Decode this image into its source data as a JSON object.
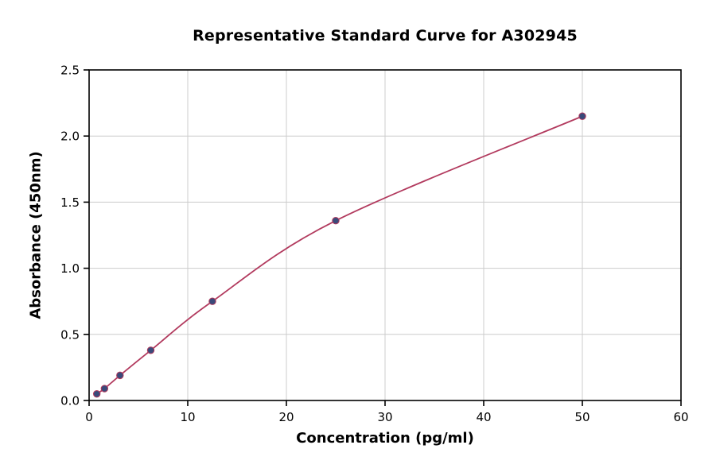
{
  "figure": {
    "background": "#ffffff"
  },
  "chart_data": {
    "type": "scatter",
    "title": "Representative Standard Curve for A302945",
    "xlabel": "Concentration (pg/ml)",
    "ylabel": "Absorbance (450nm)",
    "xlim": [
      0,
      60
    ],
    "ylim": [
      0,
      2.5
    ],
    "x_ticks": [
      0,
      10,
      20,
      30,
      40,
      50,
      60
    ],
    "x_tick_labels": [
      "0",
      "10",
      "20",
      "30",
      "40",
      "50",
      "60"
    ],
    "y_ticks": [
      0.0,
      0.5,
      1.0,
      1.5,
      2.0,
      2.5
    ],
    "y_tick_labels": [
      "0.0",
      "0.5",
      "1.0",
      "1.5",
      "2.0",
      "2.5"
    ],
    "grid": true,
    "legend": "none",
    "points": [
      {
        "x": 0.78,
        "y": 0.05
      },
      {
        "x": 1.56,
        "y": 0.09
      },
      {
        "x": 3.13,
        "y": 0.19
      },
      {
        "x": 6.25,
        "y": 0.38
      },
      {
        "x": 12.5,
        "y": 0.75
      },
      {
        "x": 25,
        "y": 1.36
      },
      {
        "x": 50,
        "y": 2.15
      }
    ],
    "line_color": "#b23a5e",
    "marker_color": "#3a4a7a",
    "grid_color": "#cccccc",
    "spine_color": "#000000"
  }
}
